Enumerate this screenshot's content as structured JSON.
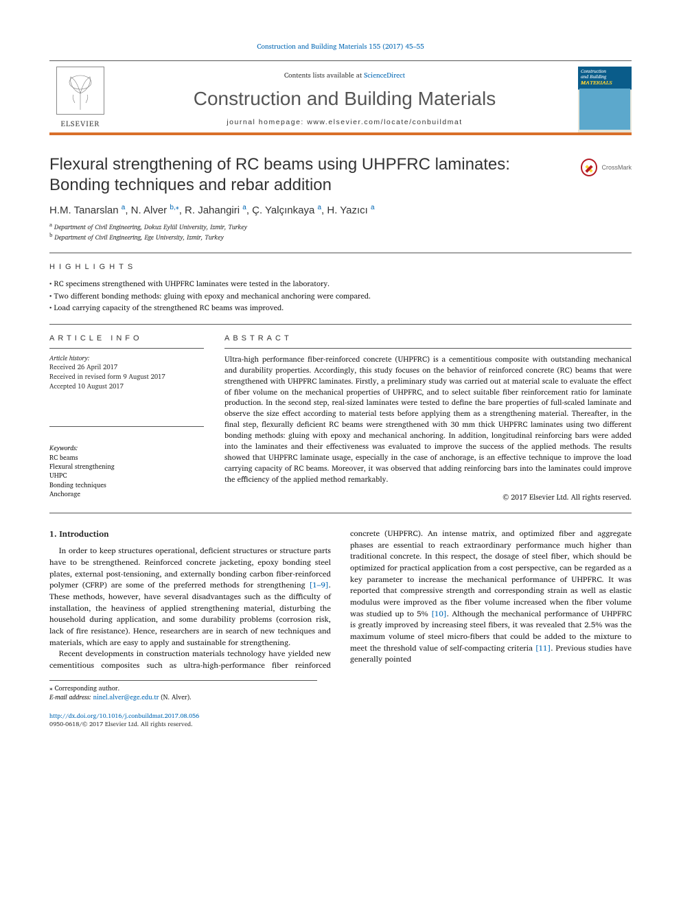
{
  "citation": "Construction and Building Materials 155 (2017) 45–55",
  "header": {
    "contents_prefix": "Contents lists available at ",
    "contents_link": "ScienceDirect",
    "journal": "Construction and Building Materials",
    "homepage_label": "journal homepage: www.elsevier.com/locate/conbuildmat",
    "publisher": "ELSEVIER",
    "cover_line1": "Construction",
    "cover_line2": "and Building",
    "cover_line3": "MATERIALS"
  },
  "crossmark": "CrossMark",
  "title": "Flexural strengthening of RC beams using UHPFRC laminates: Bonding techniques and rebar addition",
  "authors_html": "H.M. Tanarslan|a|, N. Alver|b,*|, R. Jahangiri|a|, Ç. Yalçınkaya|a|, H. Yazıcı|a|",
  "authors": [
    {
      "name": "H.M. Tanarslan",
      "aff": "a"
    },
    {
      "name": "N. Alver",
      "aff": "b",
      "corr": true
    },
    {
      "name": "R. Jahangiri",
      "aff": "a"
    },
    {
      "name": "Ç. Yalçınkaya",
      "aff": "a"
    },
    {
      "name": "H. Yazıcı",
      "aff": "a"
    }
  ],
  "affiliations": {
    "a": "Department of Civil Engineering, Dokuz Eylül University, Izmir, Turkey",
    "b": "Department of Civil Engineering, Ege University, Izmir, Turkey"
  },
  "highlights": {
    "heading": "HIGHLIGHTS",
    "items": [
      "RC specimens strengthened with UHPFRC laminates were tested in the laboratory.",
      "Two different bonding methods: gluing with epoxy and mechanical anchoring were compared.",
      "Load carrying capacity of the strengthened RC beams was improved."
    ]
  },
  "article_info": {
    "heading": "ARTICLE INFO",
    "history_label": "Article history:",
    "history": [
      "Received 26 April 2017",
      "Received in revised form 9 August 2017",
      "Accepted 10 August 2017"
    ],
    "keywords_label": "Keywords:",
    "keywords": [
      "RC beams",
      "Flexural strengthening",
      "UHPC",
      "Bonding techniques",
      "Anchorage"
    ]
  },
  "abstract": {
    "heading": "ABSTRACT",
    "text": "Ultra-high performance fiber-reinforced concrete (UHPFRC) is a cementitious composite with outstanding mechanical and durability properties. Accordingly, this study focuses on the behavior of reinforced concrete (RC) beams that were strengthened with UHPFRC laminates. Firstly, a preliminary study was carried out at material scale to evaluate the effect of fiber volume on the mechanical properties of UHPFRC, and to select suitable fiber reinforcement ratio for laminate production. In the second step, real-sized laminates were tested to define the bare properties of full-scaled laminate and observe the size effect according to material tests before applying them as a strengthening material. Thereafter, in the final step, flexurally deficient RC beams were strengthened with 30 mm thick UHPFRC laminates using two different bonding methods: gluing with epoxy and mechanical anchoring. In addition, longitudinal reinforcing bars were added into the laminates and their effectiveness was evaluated to improve the success of the applied methods. The results showed that UHPFRC laminate usage, especially in the case of anchorage, is an effective technique to improve the load carrying capacity of RC beams. Moreover, it was observed that adding reinforcing bars into the laminates could improve the efficiency of the applied method remarkably.",
    "copyright": "© 2017 Elsevier Ltd. All rights reserved."
  },
  "section1": {
    "heading": "1. Introduction",
    "p1_a": "In order to keep structures operational, deficient structures or structure parts have to be strengthened. Reinforced concrete jacketing, epoxy bonding steel plates, external post-tensioning, and externally bonding carbon fiber-reinforced polymer (CFRP) are some of the preferred methods for strengthening ",
    "p1_ref1": "[1–9]",
    "p1_b": ". These methods, however, have several disadvantages such as the difficulty of installation, the heaviness of applied strengthening material, disturbing the household during application, and some durability problems (corrosion risk, lack of fire resistance). Hence, researchers are in search of new techniques and materials, which are easy to apply and sustainable for strengthening.",
    "p2_a": "Recent developments in construction materials technology have yielded new cementitious composites such as ultra-high-performance fiber reinforced concrete (UHPFRC). An intense matrix, and optimized fiber and aggregate phases are essential to reach extraordinary performance much higher than traditional concrete. In this respect, the dosage of steel fiber, which should be optimized for practical application from a cost perspective, can be regarded as a key parameter to increase the mechanical performance of UHPFRC. It was reported that compressive strength and corresponding strain as well as elastic modulus were improved as the fiber volume increased when the fiber volume was studied up to 5% ",
    "p2_ref1": "[10]",
    "p2_b": ". Although the mechanical performance of UHPFRC is greatly improved by increasing steel fibers, it was revealed that 2.5% was the maximum volume of steel micro-fibers that could be added to the mixture to meet the threshold value of self-compacting criteria ",
    "p2_ref2": "[11]",
    "p2_c": ". Previous studies have generally pointed"
  },
  "footnote": {
    "corr": "⁎ Corresponding author.",
    "email_label": "E-mail address: ",
    "email": "ninel.alver@ege.edu.tr",
    "email_who": " (N. Alver)."
  },
  "ids": {
    "doi": "http://dx.doi.org/10.1016/j.conbuildmat.2017.08.056",
    "issn_line": "0950-0618/© 2017 Elsevier Ltd. All rights reserved."
  },
  "colors": {
    "link": "#0066b3",
    "rule_orange": "#d96f2a",
    "cover_blue": "#0a5c8a"
  }
}
